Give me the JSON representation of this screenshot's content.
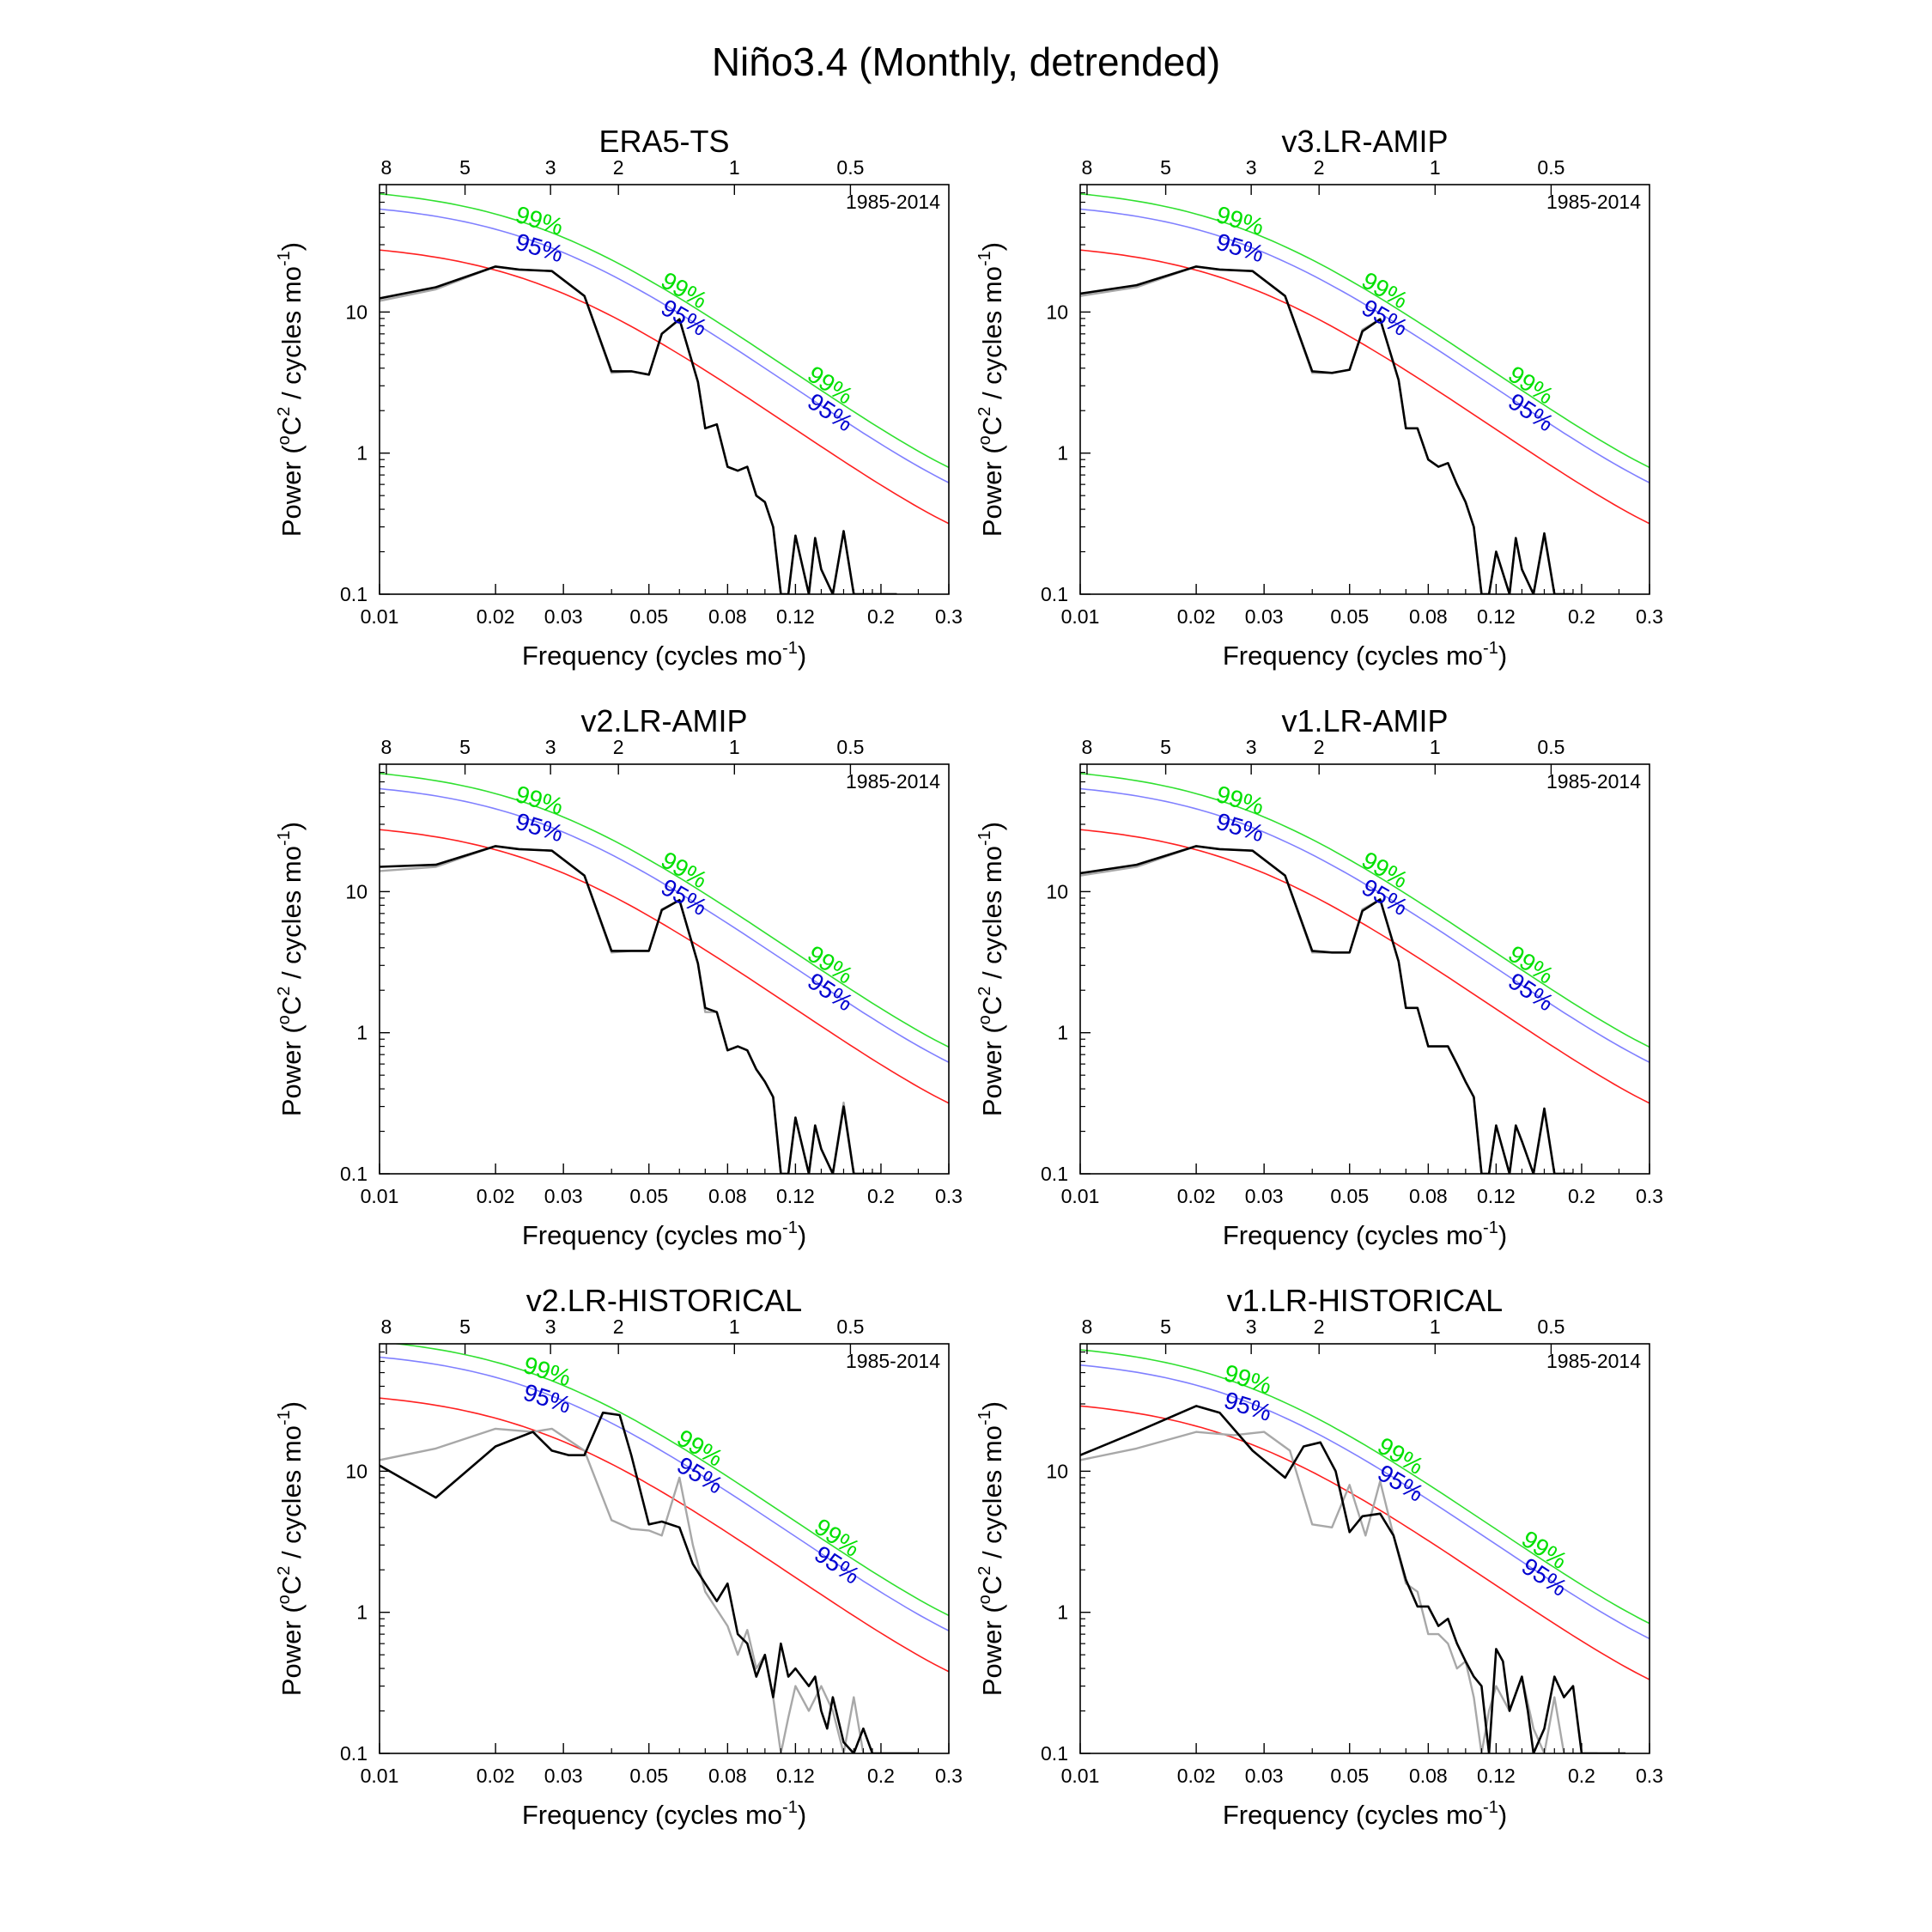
{
  "page_title": "Niño3.4 (Monthly, detrended)",
  "common": {
    "period_label": "1985-2014",
    "xlabel": "Frequency (cycles mo",
    "xlabel_sup": "-1",
    "xlabel_tail": ")",
    "ylabel_pre": "Power (",
    "ylabel_sup1": "o",
    "ylabel_mid": "C",
    "ylabel_sup2": "2",
    "ylabel_post": " / cycles mo",
    "ylabel_sup3": "-1",
    "ylabel_tail": ")",
    "x_ticks": [
      0.01,
      0.02,
      0.03,
      0.05,
      0.08,
      0.12,
      0.2,
      0.3
    ],
    "x_tick_labels": [
      "0.01",
      "0.02",
      "0.03",
      "0.05",
      "0.08",
      "0.12",
      "0.2",
      "0.3"
    ],
    "y_ticks": [
      0.1,
      1,
      10
    ],
    "y_tick_labels": [
      "0.1",
      "1",
      "10"
    ],
    "period_ticks": [
      8,
      5,
      3,
      2,
      1,
      0.5
    ],
    "period_tick_labels": [
      "8",
      "5",
      "3",
      "2",
      "1",
      "0.5"
    ],
    "xlim": [
      0.01,
      0.3
    ],
    "ylim": [
      0.1,
      80
    ],
    "x_scale": "log",
    "y_scale": "log",
    "sig_labels": [
      "99%",
      "95%"
    ],
    "colors": {
      "red_noise": "#ff2020",
      "sig95": "#8080ff",
      "sig99": "#30e030",
      "sig95_text": "#0000d0",
      "sig99_text": "#00e000",
      "spectrum": "#000000",
      "obs_spectrum": "#a8a8a8"
    }
  },
  "chart_data": [
    {
      "type": "line",
      "title": "ERA5-TS",
      "sig_label_x": [
        0.021,
        0.05,
        0.12
      ],
      "red_noise_start": 27.5,
      "series": [
        {
          "color": "#a8a8a8",
          "x": [
            0.01,
            0.014,
            0.02,
            0.023,
            0.028,
            0.034,
            0.04,
            0.045,
            0.05,
            0.054,
            0.06,
            0.067,
            0.07,
            0.075,
            0.08,
            0.085,
            0.09,
            0.095,
            0.1,
            0.105,
            0.11,
            0.115,
            0.12,
            0.13,
            0.135,
            0.14,
            0.15,
            0.16,
            0.17,
            0.18,
            0.19,
            0.2,
            0.21,
            0.22
          ],
          "y": [
            12,
            14.5,
            21,
            20,
            19.5,
            13,
            3.7,
            3.8,
            3.6,
            7,
            8.8,
            3.2,
            1.5,
            1.6,
            0.8,
            0.75,
            0.8,
            0.5,
            0.45,
            0.3,
            0.1,
            0.1,
            0.26,
            0.1,
            0.25,
            0.15,
            0.1,
            0.28,
            0.1,
            0.1,
            0.1,
            0.1,
            0.1,
            0.1
          ]
        },
        {
          "color": "#000000",
          "x": [
            0.01,
            0.014,
            0.02,
            0.023,
            0.028,
            0.034,
            0.04,
            0.045,
            0.05,
            0.054,
            0.06,
            0.067,
            0.07,
            0.075,
            0.08,
            0.085,
            0.09,
            0.095,
            0.1,
            0.105,
            0.11,
            0.115,
            0.12,
            0.13,
            0.135,
            0.14,
            0.15,
            0.16,
            0.17,
            0.18,
            0.19,
            0.2,
            0.21,
            0.22
          ],
          "y": [
            12.5,
            15,
            21,
            20,
            19.5,
            13,
            3.8,
            3.8,
            3.6,
            7,
            8.9,
            3.2,
            1.5,
            1.6,
            0.8,
            0.75,
            0.8,
            0.5,
            0.45,
            0.3,
            0.1,
            0.1,
            0.26,
            0.1,
            0.25,
            0.15,
            0.1,
            0.28,
            0.1,
            0.1,
            0.1,
            0.1,
            0.1,
            0.1
          ]
        }
      ]
    },
    {
      "type": "line",
      "title": "v3.LR-AMIP",
      "sig_label_x": [
        0.021,
        0.05,
        0.12
      ],
      "red_noise_start": 27.5,
      "series": [
        {
          "color": "#a8a8a8",
          "x": [
            0.01,
            0.014,
            0.02,
            0.023,
            0.028,
            0.034,
            0.04,
            0.045,
            0.05,
            0.054,
            0.06,
            0.067,
            0.07,
            0.075,
            0.08,
            0.085,
            0.09,
            0.095,
            0.1,
            0.105,
            0.11,
            0.115,
            0.12,
            0.13,
            0.135,
            0.14,
            0.15,
            0.16,
            0.17,
            0.18,
            0.19
          ],
          "y": [
            13,
            15,
            21,
            20,
            19.5,
            13,
            3.7,
            3.7,
            3.9,
            7.5,
            8.9,
            3.3,
            1.5,
            1.5,
            0.9,
            0.8,
            0.85,
            0.6,
            0.45,
            0.3,
            0.1,
            0.1,
            0.2,
            0.1,
            0.25,
            0.15,
            0.1,
            0.26,
            0.1,
            0.1,
            0.1
          ]
        },
        {
          "color": "#000000",
          "x": [
            0.01,
            0.014,
            0.02,
            0.023,
            0.028,
            0.034,
            0.04,
            0.045,
            0.05,
            0.054,
            0.06,
            0.067,
            0.07,
            0.075,
            0.08,
            0.085,
            0.09,
            0.095,
            0.1,
            0.105,
            0.11,
            0.115,
            0.12,
            0.13,
            0.135,
            0.14,
            0.15,
            0.16,
            0.17,
            0.18,
            0.19
          ],
          "y": [
            13.5,
            15.5,
            21,
            20,
            19.5,
            13,
            3.8,
            3.7,
            3.9,
            7.3,
            8.9,
            3.3,
            1.5,
            1.5,
            0.9,
            0.8,
            0.85,
            0.6,
            0.45,
            0.3,
            0.1,
            0.1,
            0.2,
            0.1,
            0.25,
            0.15,
            0.1,
            0.27,
            0.1,
            0.1,
            0.1
          ]
        }
      ]
    },
    {
      "type": "line",
      "title": "v2.LR-AMIP",
      "sig_label_x": [
        0.021,
        0.05,
        0.12
      ],
      "red_noise_start": 27.5,
      "series": [
        {
          "color": "#a8a8a8",
          "x": [
            0.01,
            0.014,
            0.02,
            0.023,
            0.028,
            0.034,
            0.04,
            0.045,
            0.05,
            0.054,
            0.06,
            0.067,
            0.07,
            0.075,
            0.08,
            0.085,
            0.09,
            0.095,
            0.1,
            0.105,
            0.11,
            0.115,
            0.12,
            0.13,
            0.135,
            0.14,
            0.15,
            0.16,
            0.17,
            0.18,
            0.19,
            0.2
          ],
          "y": [
            14,
            15,
            21,
            20,
            19.5,
            13,
            3.7,
            3.8,
            3.8,
            7.5,
            8.7,
            3.1,
            1.4,
            1.4,
            0.75,
            0.8,
            0.75,
            0.55,
            0.45,
            0.35,
            0.1,
            0.1,
            0.25,
            0.1,
            0.22,
            0.15,
            0.1,
            0.32,
            0.1,
            0.1,
            0.1,
            0.1
          ]
        },
        {
          "color": "#000000",
          "x": [
            0.01,
            0.014,
            0.02,
            0.023,
            0.028,
            0.034,
            0.04,
            0.045,
            0.05,
            0.054,
            0.06,
            0.067,
            0.07,
            0.075,
            0.08,
            0.085,
            0.09,
            0.095,
            0.1,
            0.105,
            0.11,
            0.115,
            0.12,
            0.13,
            0.135,
            0.14,
            0.15,
            0.16,
            0.17,
            0.18,
            0.19,
            0.2
          ],
          "y": [
            15,
            15.5,
            21,
            20,
            19.5,
            13,
            3.8,
            3.8,
            3.8,
            7.4,
            8.7,
            3.1,
            1.5,
            1.4,
            0.75,
            0.8,
            0.75,
            0.55,
            0.45,
            0.35,
            0.1,
            0.1,
            0.25,
            0.1,
            0.22,
            0.15,
            0.1,
            0.3,
            0.1,
            0.1,
            0.1,
            0.1
          ]
        }
      ]
    },
    {
      "type": "line",
      "title": "v1.LR-AMIP",
      "sig_label_x": [
        0.021,
        0.05,
        0.12
      ],
      "red_noise_start": 27.5,
      "series": [
        {
          "color": "#a8a8a8",
          "x": [
            0.01,
            0.014,
            0.02,
            0.023,
            0.028,
            0.034,
            0.04,
            0.045,
            0.05,
            0.054,
            0.06,
            0.067,
            0.07,
            0.075,
            0.08,
            0.085,
            0.09,
            0.095,
            0.1,
            0.105,
            0.11,
            0.115,
            0.12,
            0.13,
            0.135,
            0.14,
            0.15,
            0.16,
            0.17,
            0.18,
            0.19
          ],
          "y": [
            13,
            15,
            21,
            20,
            19.5,
            13,
            3.7,
            3.7,
            3.7,
            7.5,
            8.8,
            3.2,
            1.5,
            1.5,
            0.8,
            0.8,
            0.8,
            0.6,
            0.45,
            0.35,
            0.1,
            0.1,
            0.22,
            0.1,
            0.22,
            0.17,
            0.1,
            0.28,
            0.1,
            0.1,
            0.1
          ]
        },
        {
          "color": "#000000",
          "x": [
            0.01,
            0.014,
            0.02,
            0.023,
            0.028,
            0.034,
            0.04,
            0.045,
            0.05,
            0.054,
            0.06,
            0.067,
            0.07,
            0.075,
            0.08,
            0.085,
            0.09,
            0.095,
            0.1,
            0.105,
            0.11,
            0.115,
            0.12,
            0.13,
            0.135,
            0.14,
            0.15,
            0.16,
            0.17,
            0.18,
            0.19
          ],
          "y": [
            13.5,
            15.5,
            21,
            20,
            19.5,
            13,
            3.8,
            3.7,
            3.7,
            7.3,
            8.8,
            3.2,
            1.5,
            1.5,
            0.8,
            0.8,
            0.8,
            0.6,
            0.45,
            0.35,
            0.1,
            0.1,
            0.22,
            0.1,
            0.22,
            0.17,
            0.1,
            0.29,
            0.1,
            0.1,
            0.1
          ]
        }
      ]
    },
    {
      "type": "line",
      "title": "v2.LR-HISTORICAL",
      "sig_label_x": [
        0.022,
        0.055,
        0.125
      ],
      "red_noise_start": 33,
      "series": [
        {
          "color": "#a8a8a8",
          "x": [
            0.01,
            0.014,
            0.02,
            0.025,
            0.028,
            0.034,
            0.04,
            0.045,
            0.05,
            0.054,
            0.06,
            0.065,
            0.07,
            0.08,
            0.085,
            0.09,
            0.095,
            0.1,
            0.105,
            0.11,
            0.115,
            0.12,
            0.13,
            0.14,
            0.15,
            0.16,
            0.17,
            0.18,
            0.19,
            0.2,
            0.21,
            0.22,
            0.23,
            0.25
          ],
          "y": [
            12,
            14.5,
            20,
            19,
            20,
            14,
            4.5,
            3.9,
            3.8,
            3.5,
            9,
            3,
            1.4,
            0.8,
            0.5,
            0.75,
            0.4,
            0.5,
            0.25,
            0.1,
            0.18,
            0.3,
            0.2,
            0.3,
            0.2,
            0.1,
            0.25,
            0.1,
            0.1,
            0.1,
            0.1,
            0.1,
            0.1,
            0.1
          ]
        },
        {
          "color": "#000000",
          "x": [
            0.01,
            0.014,
            0.02,
            0.025,
            0.028,
            0.031,
            0.034,
            0.038,
            0.042,
            0.045,
            0.05,
            0.054,
            0.06,
            0.065,
            0.07,
            0.075,
            0.08,
            0.085,
            0.09,
            0.095,
            0.1,
            0.105,
            0.11,
            0.115,
            0.12,
            0.13,
            0.135,
            0.14,
            0.145,
            0.15,
            0.16,
            0.17,
            0.18,
            0.19,
            0.2,
            0.21,
            0.22,
            0.23,
            0.24,
            0.25
          ],
          "y": [
            11,
            6.5,
            15,
            19,
            14,
            13,
            13,
            26,
            25,
            13,
            4.2,
            4.4,
            4,
            2.2,
            1.6,
            1.2,
            1.6,
            0.7,
            0.6,
            0.35,
            0.5,
            0.25,
            0.6,
            0.35,
            0.4,
            0.3,
            0.35,
            0.2,
            0.15,
            0.25,
            0.12,
            0.1,
            0.15,
            0.1,
            0.1,
            0.1,
            0.1,
            0.1,
            0.1,
            0.1
          ]
        }
      ]
    },
    {
      "type": "line",
      "title": "v1.LR-HISTORICAL",
      "sig_label_x": [
        0.022,
        0.055,
        0.13
      ],
      "red_noise_start": 29,
      "series": [
        {
          "color": "#a8a8a8",
          "x": [
            0.01,
            0.014,
            0.02,
            0.025,
            0.03,
            0.035,
            0.04,
            0.045,
            0.05,
            0.055,
            0.06,
            0.065,
            0.07,
            0.075,
            0.08,
            0.085,
            0.09,
            0.095,
            0.1,
            0.105,
            0.11,
            0.115,
            0.12,
            0.13,
            0.14,
            0.15,
            0.16,
            0.17,
            0.18,
            0.19,
            0.2,
            0.22
          ],
          "y": [
            12,
            14.5,
            19,
            18,
            19,
            14,
            4.2,
            4,
            8,
            3.5,
            8.5,
            3.5,
            1.6,
            1.4,
            0.7,
            0.7,
            0.6,
            0.4,
            0.45,
            0.25,
            0.1,
            0.2,
            0.3,
            0.2,
            0.35,
            0.15,
            0.1,
            0.25,
            0.1,
            0.1,
            0.1,
            0.1
          ]
        },
        {
          "color": "#000000",
          "x": [
            0.01,
            0.014,
            0.02,
            0.023,
            0.028,
            0.034,
            0.038,
            0.042,
            0.046,
            0.05,
            0.054,
            0.06,
            0.065,
            0.07,
            0.075,
            0.08,
            0.085,
            0.09,
            0.095,
            0.1,
            0.105,
            0.11,
            0.115,
            0.12,
            0.125,
            0.13,
            0.14,
            0.145,
            0.15,
            0.16,
            0.17,
            0.18,
            0.19,
            0.2,
            0.22,
            0.25,
            0.26
          ],
          "y": [
            13,
            19,
            29,
            26,
            14,
            9,
            15,
            16,
            10,
            3.7,
            4.8,
            5,
            3.5,
            1.7,
            1.1,
            1.1,
            0.8,
            0.9,
            0.6,
            0.45,
            0.35,
            0.3,
            0.1,
            0.55,
            0.45,
            0.2,
            0.35,
            0.2,
            0.1,
            0.15,
            0.35,
            0.25,
            0.3,
            0.1,
            0.1,
            0.1,
            0.1
          ]
        }
      ]
    }
  ]
}
